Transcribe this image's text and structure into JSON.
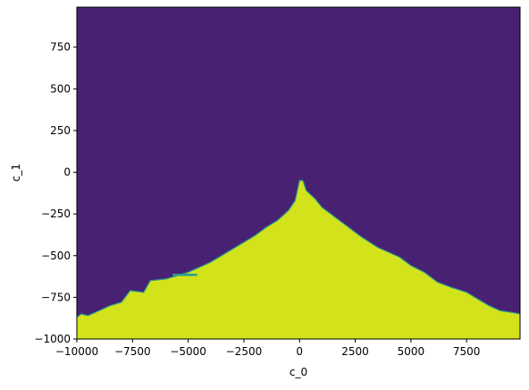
{
  "chart_data": {
    "type": "heatmap",
    "xlabel": "c_0",
    "ylabel": "c_1",
    "xlim": [
      -10000,
      9900
    ],
    "ylim": [
      -1000,
      990
    ],
    "x_ticks": [
      -10000,
      -7500,
      -5000,
      -2500,
      0,
      2500,
      5000,
      7500
    ],
    "x_tick_labels": [
      "−10000",
      "−7500",
      "−5000",
      "−2500",
      "0",
      "2500",
      "5000",
      "7500"
    ],
    "y_ticks": [
      -1000,
      -750,
      -500,
      -250,
      0,
      250,
      500,
      750
    ],
    "y_tick_labels": [
      "−1000",
      "−750",
      "−500",
      "−250",
      "0",
      "250",
      "500",
      "750"
    ],
    "regions": [
      {
        "class": "upper",
        "color": "#482173"
      },
      {
        "class": "lower",
        "color": "#d2e21b"
      }
    ],
    "boundary_color": "#2a9d8f",
    "boundary": {
      "x": [
        -10000,
        -9800,
        -9500,
        -9000,
        -8500,
        -8000,
        -7600,
        -7000,
        -6700,
        -6000,
        -5500,
        -5000,
        -4500,
        -4000,
        -3500,
        -3000,
        -2500,
        -2000,
        -1500,
        -1000,
        -500,
        -200,
        0,
        150,
        300,
        700,
        1000,
        2000,
        2800,
        3500,
        4500,
        5000,
        5600,
        6200,
        6800,
        7500,
        8000,
        8500,
        9000,
        9500,
        9900
      ],
      "y": [
        -870,
        -850,
        -860,
        -830,
        -800,
        -780,
        -710,
        -720,
        -650,
        -640,
        -620,
        -600,
        -570,
        -540,
        -500,
        -460,
        -420,
        -380,
        -330,
        -290,
        -230,
        -170,
        -50,
        -50,
        -110,
        -160,
        -210,
        -310,
        -390,
        -450,
        -510,
        -560,
        -600,
        -660,
        -690,
        -720,
        -760,
        -800,
        -830,
        -840,
        -850
      ]
    },
    "spur": {
      "x": [
        -5700,
        -4600
      ],
      "y": [
        -615,
        -615
      ]
    }
  }
}
